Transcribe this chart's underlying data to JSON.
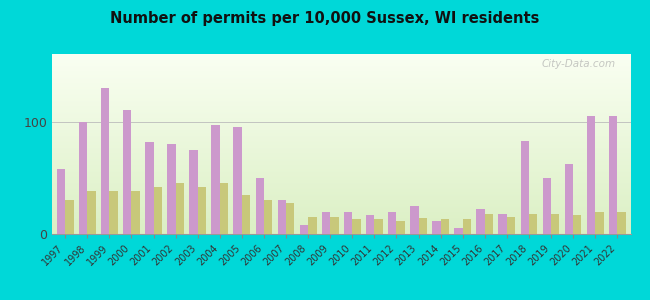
{
  "title": "Number of permits per 10,000 Sussex, WI residents",
  "years": [
    1997,
    1998,
    1999,
    2000,
    2001,
    2002,
    2003,
    2004,
    2005,
    2006,
    2007,
    2008,
    2009,
    2010,
    2011,
    2012,
    2013,
    2014,
    2015,
    2016,
    2017,
    2018,
    2019,
    2020,
    2021,
    2022
  ],
  "sussex": [
    58,
    100,
    130,
    110,
    82,
    80,
    75,
    97,
    95,
    50,
    30,
    8,
    20,
    20,
    17,
    20,
    25,
    12,
    5,
    22,
    18,
    83,
    50,
    62,
    105,
    105
  ],
  "wisconsin": [
    30,
    38,
    38,
    38,
    42,
    45,
    42,
    45,
    35,
    30,
    28,
    15,
    15,
    13,
    13,
    12,
    14,
    13,
    13,
    18,
    15,
    18,
    18,
    17,
    20,
    20
  ],
  "sussex_color": "#cc99cc",
  "wisconsin_color": "#c8c87a",
  "background_outer": "#00d8d8",
  "watermark": "City-Data.com",
  "ymax": 160,
  "yticks": [
    0,
    100
  ]
}
